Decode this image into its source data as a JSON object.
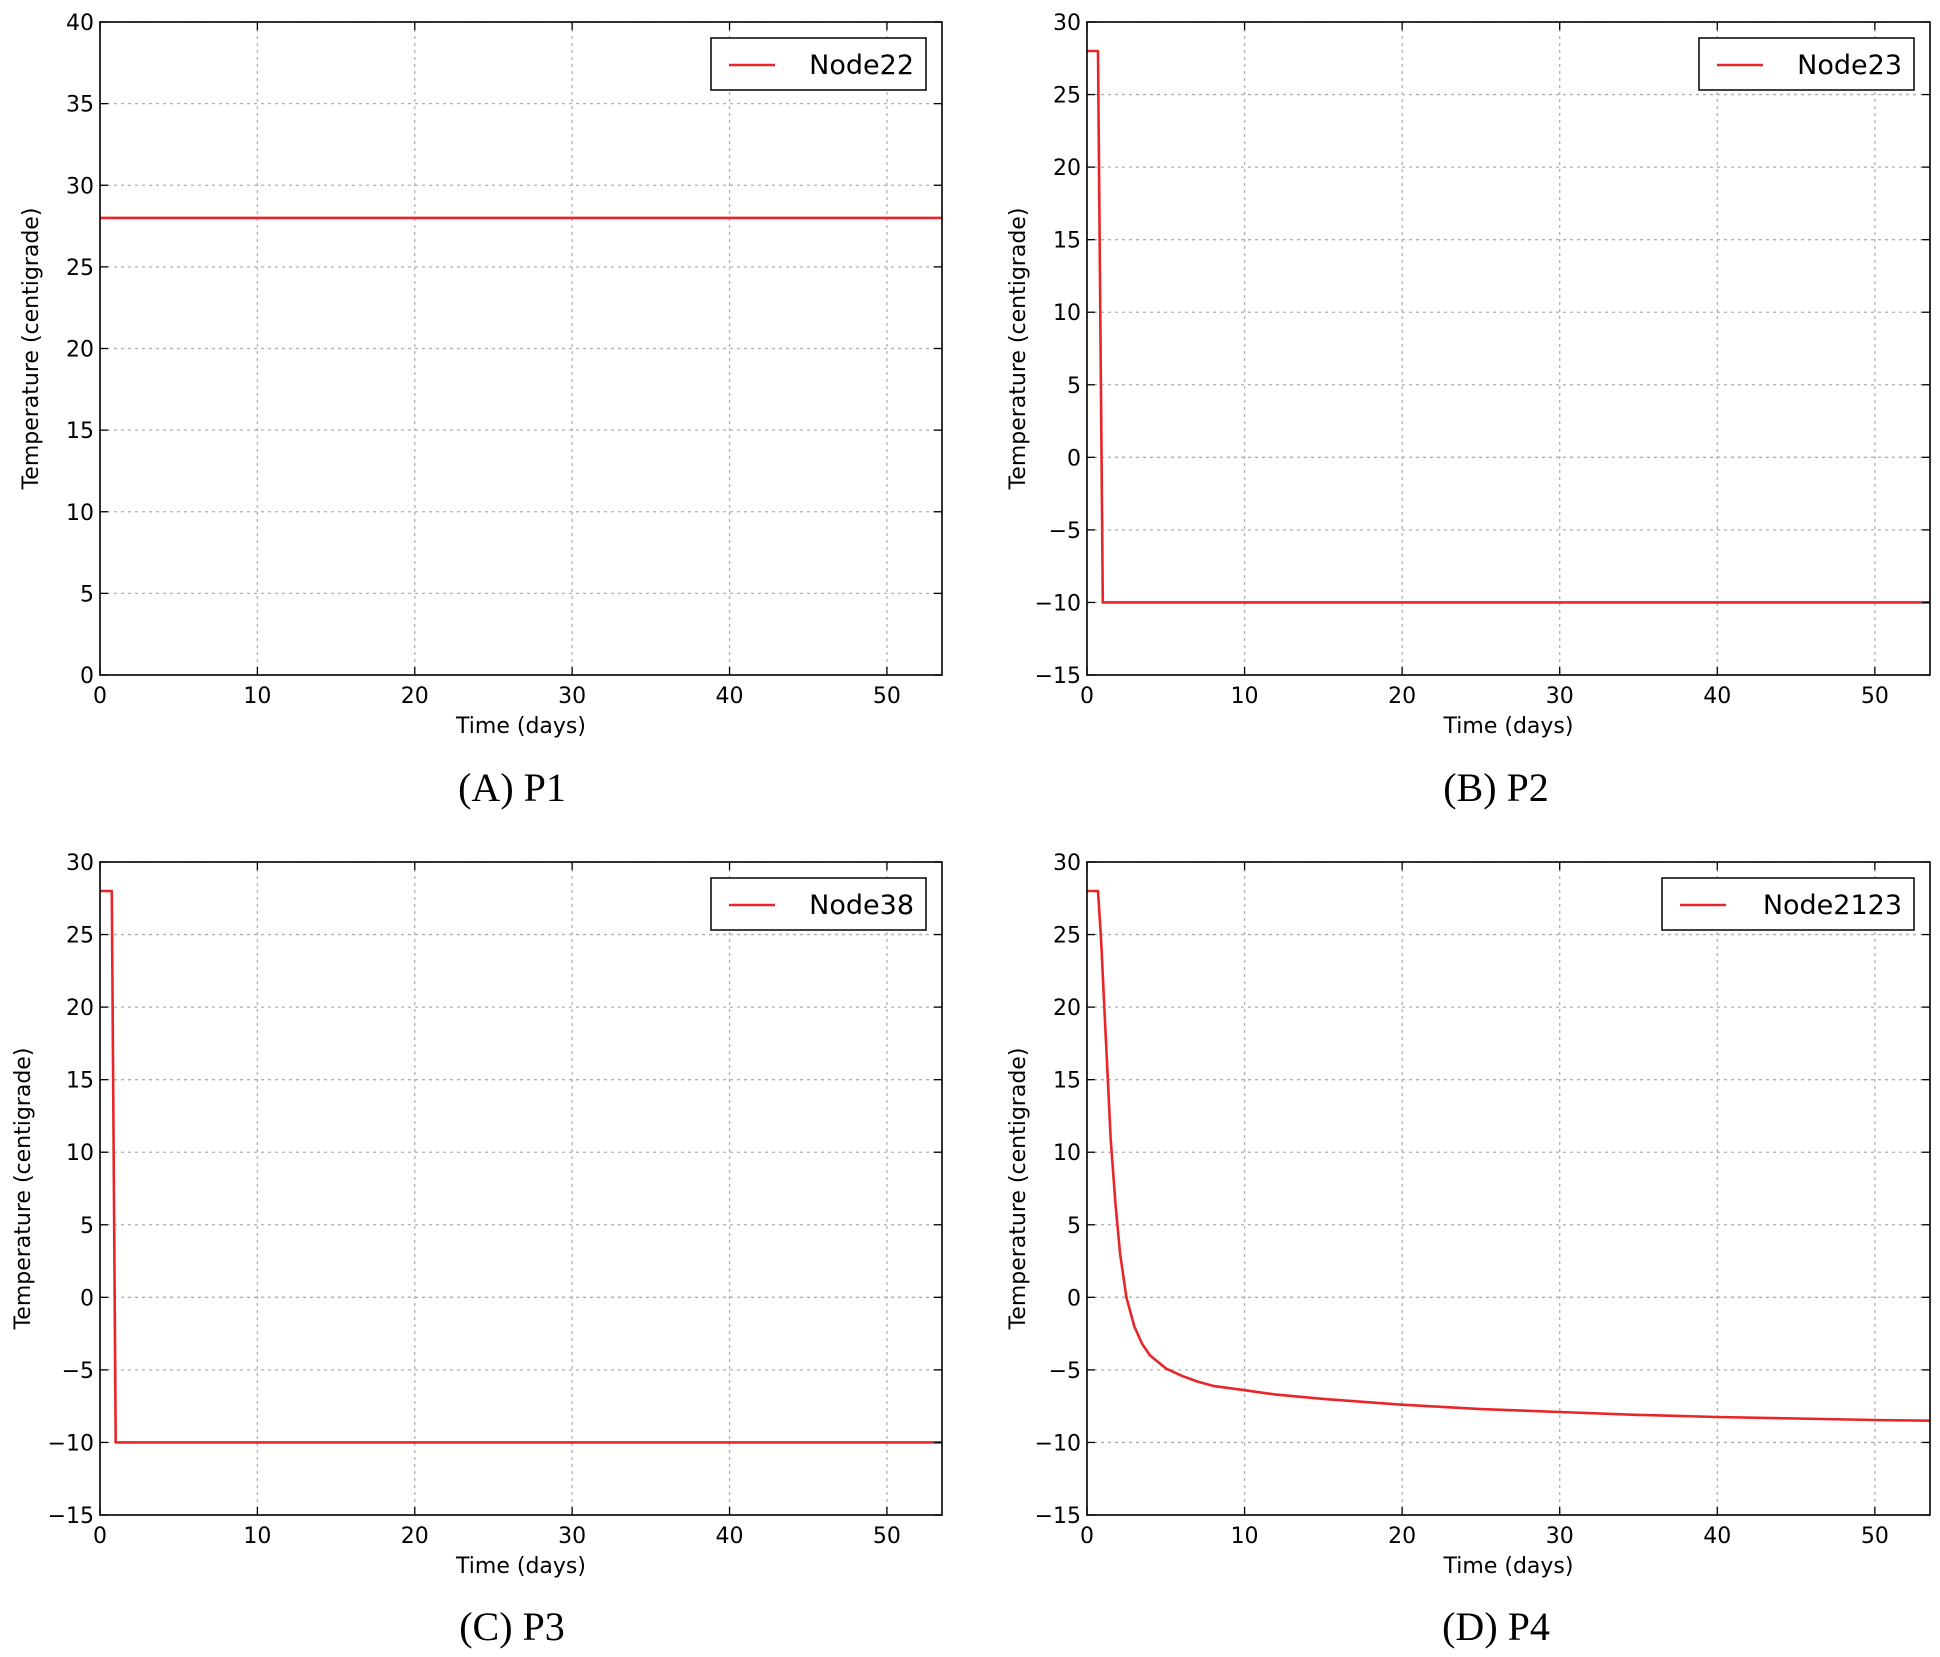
{
  "chart_data": [
    {
      "type": "line",
      "caption": "(A) P1",
      "xlabel": "Time (days)",
      "ylabel": "Temperature (centigrade)",
      "xlim": [
        0,
        53.5
      ],
      "ylim": [
        0,
        40
      ],
      "xticks": [
        0,
        10,
        20,
        30,
        40,
        50
      ],
      "yticks": [
        0,
        5,
        10,
        15,
        20,
        25,
        30,
        35,
        40
      ],
      "ytick_labels": [
        "0",
        "5",
        "10",
        "15",
        "20",
        "25",
        "30",
        "35",
        "40"
      ],
      "grid": true,
      "legend": "top-right",
      "series": [
        {
          "name": "Node22",
          "color": "#e8262a",
          "x": [
            0,
            53.5
          ],
          "y": [
            28,
            28
          ]
        }
      ]
    },
    {
      "type": "line",
      "caption": "(B) P2",
      "xlabel": "Time (days)",
      "ylabel": "Temperature (centigrade)",
      "xlim": [
        0,
        53.5
      ],
      "ylim": [
        -15,
        30
      ],
      "xticks": [
        0,
        10,
        20,
        30,
        40,
        50
      ],
      "yticks": [
        -15,
        -10,
        -5,
        0,
        5,
        10,
        15,
        20,
        25,
        30
      ],
      "ytick_labels": [
        "−15",
        "−10",
        "−5",
        "0",
        "5",
        "10",
        "15",
        "20",
        "25",
        "30"
      ],
      "grid": true,
      "legend": "top-right",
      "series": [
        {
          "name": "Node23",
          "color": "#e8262a",
          "x": [
            0,
            0.7,
            1.0,
            53.5
          ],
          "y": [
            28,
            28,
            -10,
            -10
          ]
        }
      ]
    },
    {
      "type": "line",
      "caption": "(C) P3",
      "xlabel": "Time (days)",
      "ylabel": "Temperature (centigrade)",
      "xlim": [
        0,
        53.5
      ],
      "ylim": [
        -15,
        30
      ],
      "xticks": [
        0,
        10,
        20,
        30,
        40,
        50
      ],
      "yticks": [
        -15,
        -10,
        -5,
        0,
        5,
        10,
        15,
        20,
        25,
        30
      ],
      "ytick_labels": [
        "−15",
        "−10",
        "−5",
        "0",
        "5",
        "10",
        "15",
        "20",
        "25",
        "30"
      ],
      "grid": true,
      "legend": "top-right",
      "series": [
        {
          "name": "Node38",
          "color": "#e8262a",
          "x": [
            0,
            0.75,
            1.0,
            53.5
          ],
          "y": [
            28,
            28,
            -10,
            -10
          ]
        }
      ]
    },
    {
      "type": "line",
      "caption": "(D) P4",
      "xlabel": "Time (days)",
      "ylabel": "Temperature (centigrade)",
      "xlim": [
        0,
        53.5
      ],
      "ylim": [
        -15,
        30
      ],
      "xticks": [
        0,
        10,
        20,
        30,
        40,
        50
      ],
      "yticks": [
        -15,
        -10,
        -5,
        0,
        5,
        10,
        15,
        20,
        25,
        30
      ],
      "ytick_labels": [
        "−15",
        "−10",
        "−5",
        "0",
        "5",
        "10",
        "15",
        "20",
        "25",
        "30"
      ],
      "grid": true,
      "legend": "top-right",
      "series": [
        {
          "name": "Node2123",
          "color": "#e8262a",
          "x": [
            0,
            0.7,
            0.9,
            1.1,
            1.3,
            1.5,
            1.8,
            2.1,
            2.5,
            3.0,
            3.5,
            4.0,
            5.0,
            6.0,
            7.0,
            8.0,
            10.0,
            12.0,
            15.0,
            20.0,
            25.0,
            30.0,
            35.0,
            40.0,
            45.0,
            50.0,
            53.5
          ],
          "y": [
            28,
            28,
            24.5,
            20,
            15.5,
            11,
            6.5,
            3,
            0,
            -2,
            -3.2,
            -4,
            -4.9,
            -5.4,
            -5.8,
            -6.1,
            -6.4,
            -6.7,
            -7.0,
            -7.4,
            -7.7,
            -7.9,
            -8.1,
            -8.25,
            -8.35,
            -8.45,
            -8.5
          ]
        }
      ]
    }
  ]
}
